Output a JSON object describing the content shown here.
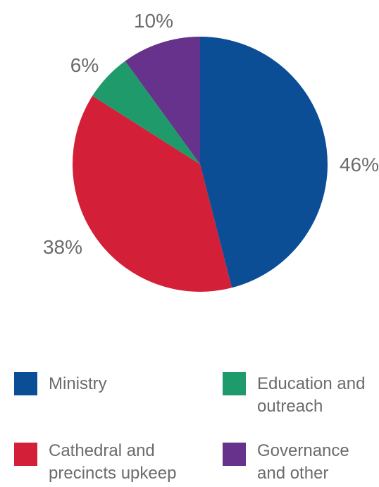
{
  "chart_data": {
    "type": "pie",
    "title": "",
    "slices": [
      {
        "name": "Ministry",
        "value": 46,
        "label": "46%",
        "color": "#0b4e96"
      },
      {
        "name": "Cathedral and precincts upkeep",
        "value": 38,
        "label": "38%",
        "color": "#d31f38"
      },
      {
        "name": "Education and outreach",
        "value": 6,
        "label": "6%",
        "color": "#1f9a6b"
      },
      {
        "name": "Governance and other",
        "value": 10,
        "label": "10%",
        "color": "#66328c"
      }
    ],
    "legend": [
      {
        "text": "Ministry",
        "color": "#0b4e96"
      },
      {
        "text": "Education and\noutreach",
        "color": "#1f9a6b"
      },
      {
        "text": "Cathedral and\nprecincts upkeep",
        "color": "#d31f38"
      },
      {
        "text": "Governance\nand other",
        "color": "#66328c"
      }
    ]
  }
}
